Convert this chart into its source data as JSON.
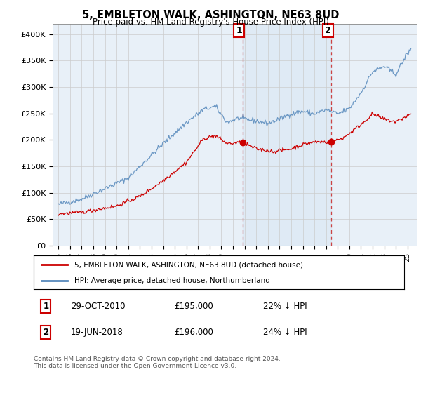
{
  "title": "5, EMBLETON WALK, ASHINGTON, NE63 8UD",
  "subtitle": "Price paid vs. HM Land Registry's House Price Index (HPI)",
  "hpi_color": "#5588bb",
  "hpi_fill_color": "#ddeeff",
  "price_color": "#cc0000",
  "background_color": "#e8f0f8",
  "ylabel": "",
  "ylim": [
    0,
    420000
  ],
  "yticks": [
    0,
    50000,
    100000,
    150000,
    200000,
    250000,
    300000,
    350000,
    400000
  ],
  "ytick_labels": [
    "£0",
    "£50K",
    "£100K",
    "£150K",
    "£200K",
    "£250K",
    "£300K",
    "£350K",
    "£400K"
  ],
  "sale1_date": 2010.83,
  "sale1_price": 195000,
  "sale1_label": "1",
  "sale2_date": 2018.46,
  "sale2_price": 196000,
  "sale2_label": "2",
  "legend_line1": "5, EMBLETON WALK, ASHINGTON, NE63 8UD (detached house)",
  "legend_line2": "HPI: Average price, detached house, Northumberland",
  "note1_label": "1",
  "note1_date": "29-OCT-2010",
  "note1_price": "£195,000",
  "note1_hpi": "22% ↓ HPI",
  "note2_label": "2",
  "note2_date": "19-JUN-2018",
  "note2_price": "£196,000",
  "note2_hpi": "24% ↓ HPI",
  "footer": "Contains HM Land Registry data © Crown copyright and database right 2024.\nThis data is licensed under the Open Government Licence v3.0."
}
